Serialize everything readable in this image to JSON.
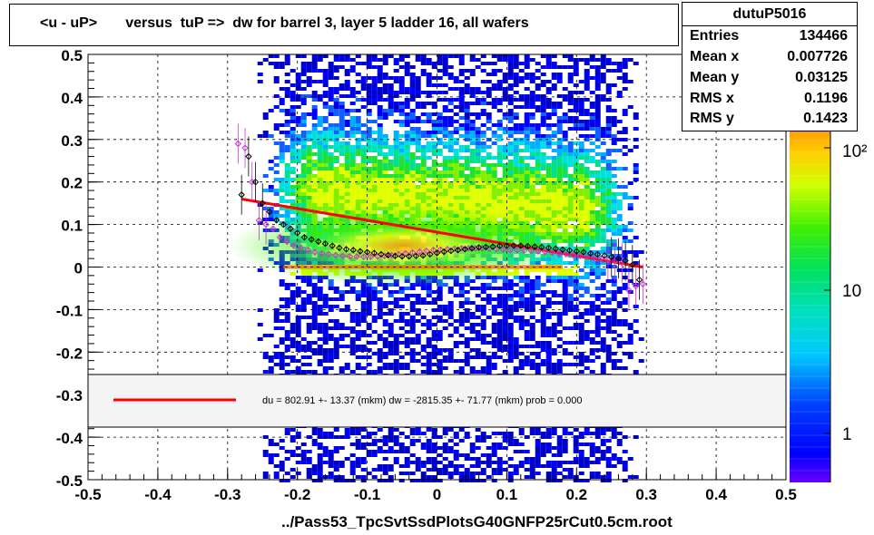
{
  "chart_data": {
    "type": "scatter",
    "title": "<u - uP>       versus  tuP =>  dw for barrel 3, layer 5 ladder 16, all wafers",
    "xlabel": "../Pass53_TpcSvtSsdPlotsG40GNFP25rCut0.5cm.root",
    "ylabel": "",
    "xlim": [
      -0.5,
      0.5
    ],
    "ylim": [
      -0.5,
      0.5
    ],
    "x_ticks": [
      "-0.5",
      "-0.4",
      "-0.3",
      "-0.2",
      "-0.1",
      "0",
      "0.1",
      "0.2",
      "0.3",
      "0.4",
      "0.5"
    ],
    "y_ticks": [
      "-0.5",
      "-0.4",
      "-0.3",
      "-0.2",
      "-0.1",
      "0",
      "0.1",
      "0.2",
      "0.3",
      "0.4",
      "0.5"
    ],
    "grid": true,
    "z_scale": "log",
    "z_ticks": [
      "1",
      "10",
      "10²"
    ],
    "stats": {
      "name": "dutuP5016",
      "rows": [
        {
          "key": "Entries",
          "value": "134466"
        },
        {
          "key": "Mean x",
          "value": "0.007726"
        },
        {
          "key": "Mean y",
          "value": "0.03125"
        },
        {
          "key": "RMS x",
          "value": "0.1196"
        },
        {
          "key": "RMS y",
          "value": "0.1423"
        }
      ]
    },
    "fit": {
      "label": "du =  802.91 +- 13.37 (mkm) dw = -2815.35 +- 71.77 (mkm) prob = 0.000",
      "color": "#ff0000",
      "x": [
        -0.28,
        0.295
      ],
      "y": [
        0.16,
        0.0
      ]
    },
    "profile_black": {
      "color": "#000000",
      "x": [
        -0.28,
        -0.27,
        -0.26,
        -0.25,
        -0.24,
        -0.23,
        -0.22,
        -0.21,
        -0.2,
        -0.19,
        -0.18,
        -0.17,
        -0.16,
        -0.15,
        -0.14,
        -0.13,
        -0.12,
        -0.11,
        -0.1,
        -0.09,
        -0.08,
        -0.07,
        -0.06,
        -0.05,
        -0.04,
        -0.03,
        -0.02,
        -0.01,
        0.0,
        0.01,
        0.02,
        0.03,
        0.04,
        0.05,
        0.06,
        0.07,
        0.08,
        0.09,
        0.1,
        0.11,
        0.12,
        0.13,
        0.14,
        0.15,
        0.16,
        0.17,
        0.18,
        0.19,
        0.2,
        0.21,
        0.22,
        0.23,
        0.24,
        0.25,
        0.26,
        0.27,
        0.28,
        0.29
      ],
      "y": [
        0.17,
        0.26,
        0.2,
        0.15,
        0.13,
        0.11,
        0.1,
        0.09,
        0.08,
        0.07,
        0.065,
        0.06,
        0.055,
        0.05,
        0.045,
        0.042,
        0.04,
        0.037,
        0.035,
        0.033,
        0.03,
        0.028,
        0.026,
        0.025,
        0.025,
        0.026,
        0.027,
        0.03,
        0.033,
        0.036,
        0.038,
        0.04,
        0.042,
        0.044,
        0.046,
        0.047,
        0.048,
        0.05,
        0.05,
        0.05,
        0.05,
        0.049,
        0.048,
        0.047,
        0.045,
        0.043,
        0.041,
        0.039,
        0.037,
        0.035,
        0.032,
        0.03,
        0.027,
        0.024,
        0.02,
        0.015,
        0.005,
        -0.03
      ]
    },
    "profile_magenta": {
      "color": "#cc33cc",
      "x": [
        -0.285,
        -0.275,
        -0.265,
        -0.255,
        -0.245,
        -0.235,
        -0.225,
        -0.215,
        -0.205,
        -0.195,
        -0.185,
        -0.175,
        -0.165,
        -0.155,
        -0.145,
        -0.135,
        -0.125,
        -0.115,
        -0.105,
        -0.095,
        -0.085,
        -0.075,
        -0.065,
        -0.055,
        -0.045,
        -0.035,
        -0.025,
        -0.015,
        -0.005,
        0.005,
        0.015,
        0.025,
        0.035,
        0.045,
        0.055,
        0.065,
        0.075,
        0.085,
        0.095,
        0.105,
        0.115,
        0.125,
        0.135,
        0.145,
        0.155,
        0.165,
        0.175,
        0.185,
        0.195,
        0.205,
        0.215,
        0.225,
        0.235,
        0.245,
        0.255,
        0.265,
        0.275,
        0.285,
        0.295
      ],
      "y": [
        0.29,
        0.28,
        0.2,
        0.11,
        0.1,
        0.09,
        0.07,
        0.06,
        0.05,
        0.045,
        0.04,
        0.035,
        0.032,
        0.03,
        0.028,
        0.026,
        0.025,
        0.025,
        0.024,
        0.024,
        0.025,
        0.026,
        0.028,
        0.03,
        0.032,
        0.034,
        0.036,
        0.038,
        0.04,
        0.041,
        0.042,
        0.043,
        0.044,
        0.044,
        0.044,
        0.044,
        0.043,
        0.042,
        0.041,
        0.04,
        0.04,
        0.039,
        0.038,
        0.037,
        0.036,
        0.034,
        0.032,
        0.03,
        0.028,
        0.026,
        0.024,
        0.022,
        0.02,
        0.017,
        0.014,
        0.01,
        -0.055,
        -0.045,
        -0.04
      ]
    }
  }
}
